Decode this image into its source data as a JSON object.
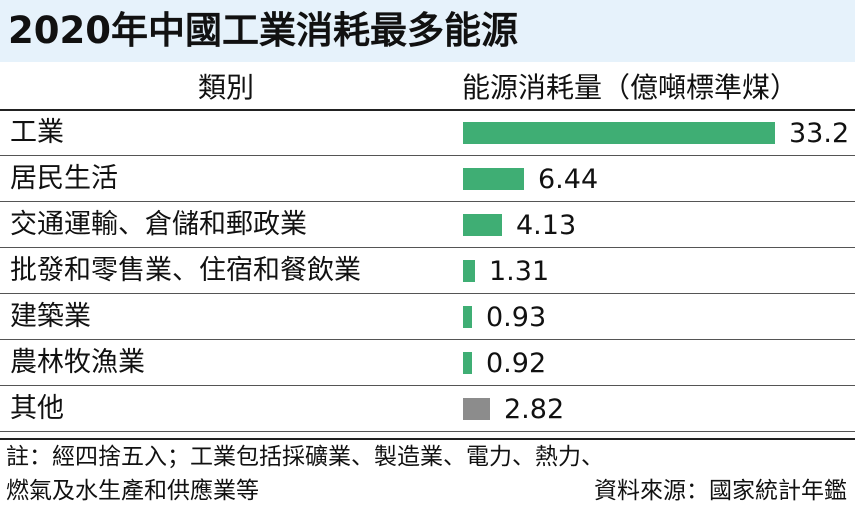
{
  "title": "2020年中國工業消耗最多能源",
  "header": {
    "category": "類別",
    "value": "能源消耗量（億噸標準煤）"
  },
  "colors": {
    "bar_green": "#3fae74",
    "bar_other": "#8c8c8c",
    "title_bg": "#e6f2fb"
  },
  "chart_data": {
    "type": "bar",
    "orientation": "horizontal",
    "title": "2020年中國工業消耗最多能源",
    "xlabel": "能源消耗量（億噸標準煤）",
    "ylabel": "類別",
    "categories": [
      "工業",
      "居民生活",
      "交通運輸、倉儲和郵政業",
      "批發和零售業、住宿和餐飲業",
      "建築業",
      "農林牧漁業",
      "其他"
    ],
    "values": [
      33.2,
      6.44,
      4.13,
      1.31,
      0.93,
      0.92,
      2.82
    ],
    "labels": [
      "33.2",
      "6.44",
      "4.13",
      "1.31",
      "0.93",
      "0.92",
      "2.82"
    ],
    "xlim": [
      0,
      33.2
    ],
    "grid": false,
    "legend": "none"
  },
  "note": {
    "line1": "註：經四捨五入；工業包括採礦業、製造業、電力、熱力、",
    "line2": "燃氣及水生產和供應業等",
    "source": "資料來源：國家統計年鑑"
  }
}
